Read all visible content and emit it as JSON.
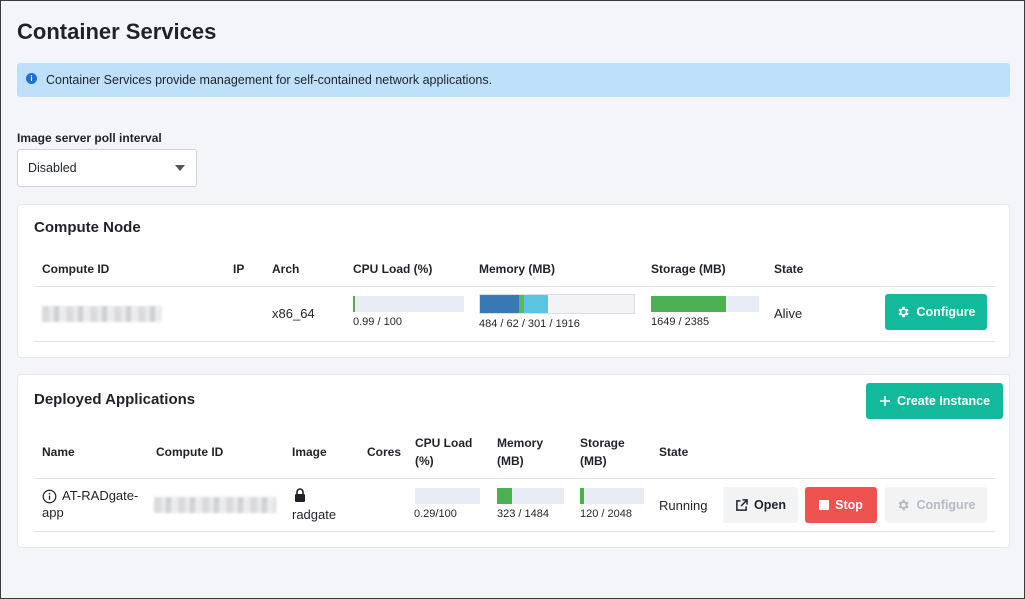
{
  "page": {
    "title": "Container Services",
    "info": "Container Services provide management for self-contained network applications."
  },
  "poll": {
    "label": "Image server poll interval",
    "value": "Disabled"
  },
  "compute_node": {
    "title": "Compute Node",
    "headers": {
      "compute_id": "Compute ID",
      "ip": "IP",
      "arch": "Arch",
      "cpu": "CPU Load (%)",
      "memory": "Memory (MB)",
      "storage": "Storage (MB)",
      "state": "State"
    },
    "row": {
      "arch": "x86_64",
      "cpu_text": "0.99 / 100",
      "cpu_fraction": 0.0099,
      "memory_text": "484 / 62 / 301 / 1916",
      "memory_segments": [
        484,
        62,
        301
      ],
      "memory_total": 1916,
      "storage_text": "1649 / 2385",
      "storage_fraction": 0.6914,
      "state": "Alive",
      "configure_label": "Configure"
    }
  },
  "deployed": {
    "title": "Deployed Applications",
    "create_label": "Create Instance",
    "headers": {
      "name": "Name",
      "compute_id": "Compute ID",
      "image": "Image",
      "cores": "Cores",
      "cpu_line1": "CPU Load",
      "cpu_line2": "(%)",
      "memory_line1": "Memory",
      "memory_line2": "(MB)",
      "storage_line1": "Storage",
      "storage_line2": "(MB)",
      "state": "State"
    },
    "row": {
      "name_line1": "AT-RADgate-",
      "name_line2": "app",
      "image": "radgate",
      "cpu_text": "0.29/100",
      "cpu_fraction": 0.0029,
      "memory_text": "323 / 1484",
      "memory_fraction": 0.2177,
      "storage_text": "120 / 2048",
      "storage_fraction": 0.0586,
      "state": "Running",
      "open_label": "Open",
      "stop_label": "Stop",
      "configure_label": "Configure"
    }
  },
  "colors": {
    "accent": "#12b99a",
    "danger": "#ef5350",
    "bar_green": "#4caf50",
    "mem_blue": "#3a77b6",
    "mem_green": "#5cb85c",
    "mem_cyan": "#5bc4e0",
    "info_bg": "#bfe0fb"
  }
}
